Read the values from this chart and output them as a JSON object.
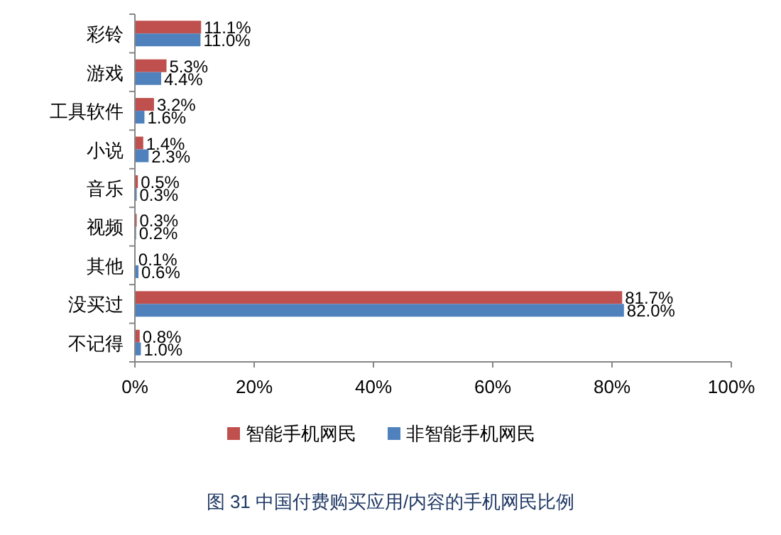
{
  "chart_data": {
    "type": "bar",
    "orientation": "horizontal",
    "title": "图 31 中国付费购买应用/内容的手机网民比例",
    "categories": [
      "彩铃",
      "游戏",
      "工具软件",
      "小说",
      "音乐",
      "视频",
      "其他",
      "没买过",
      "不记得"
    ],
    "series": [
      {
        "name": "智能手机网民",
        "color": "#c0504d",
        "values": [
          11.1,
          5.3,
          3.2,
          1.4,
          0.5,
          0.3,
          0.1,
          81.7,
          0.8
        ],
        "value_labels": [
          "11.1%",
          "5.3%",
          "3.2%",
          "1.4%",
          "0.5%",
          "0.3%",
          "0.1%",
          "81.7%",
          "0.8%"
        ]
      },
      {
        "name": "非智能手机网民",
        "color": "#4f81bd",
        "values": [
          11.0,
          4.4,
          1.6,
          2.3,
          0.3,
          0.2,
          0.6,
          82.0,
          1.0
        ],
        "value_labels": [
          "11.0%",
          "4.4%",
          "1.6%",
          "2.3%",
          "0.3%",
          "0.2%",
          "0.6%",
          "82.0%",
          "1.0%"
        ]
      }
    ],
    "xlim": [
      0,
      100
    ],
    "xticks": [
      {
        "value": 0,
        "label": "0%"
      },
      {
        "value": 20,
        "label": "20%"
      },
      {
        "value": 40,
        "label": "40%"
      },
      {
        "value": 60,
        "label": "60%"
      },
      {
        "value": 80,
        "label": "80%"
      },
      {
        "value": 100,
        "label": "100%"
      }
    ],
    "legend": "bottom"
  }
}
